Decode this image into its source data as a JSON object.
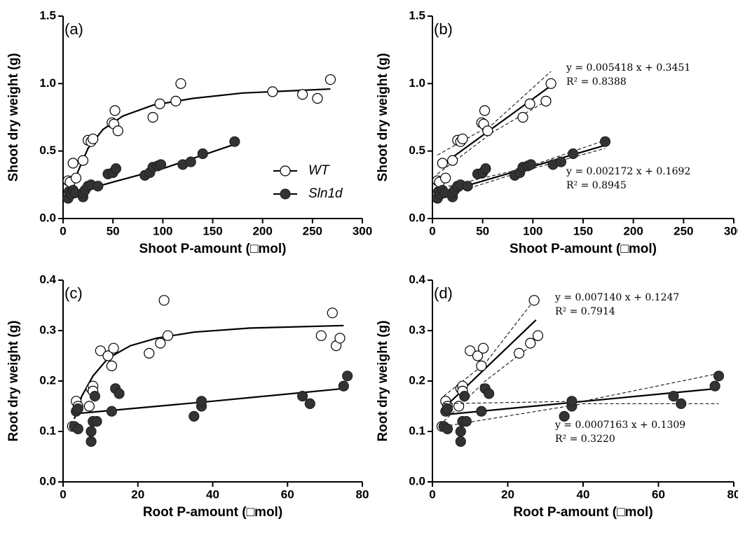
{
  "chart_data": [
    {
      "type": "scatter",
      "panel_label": "(a)",
      "xlabel": "Shoot P-amount (□mol)",
      "ylabel": "Shoot dry weight (g)",
      "xlim": [
        0,
        300
      ],
      "ylim": [
        0,
        1.5
      ],
      "xticks": [
        0,
        50,
        100,
        150,
        200,
        250,
        300
      ],
      "yticks": [
        {
          "value": 0,
          "label": "0.0"
        },
        0.5,
        {
          "value": 1,
          "label": "1.0"
        },
        1.5
      ],
      "legend": "center right",
      "series": [
        {
          "name": "WT",
          "marker": "open",
          "color": "#000000",
          "x": [
            5,
            7,
            10,
            13,
            20,
            25,
            28,
            30,
            49,
            51,
            52,
            55,
            90,
            97,
            113,
            118,
            210,
            240,
            255,
            268
          ],
          "values": [
            0.28,
            0.27,
            0.41,
            0.3,
            0.43,
            0.58,
            0.57,
            0.59,
            0.71,
            0.7,
            0.8,
            0.65,
            0.75,
            0.85,
            0.87,
            1.0,
            0.94,
            0.92,
            0.89,
            1.03
          ],
          "fit": {
            "x": [
              8,
              15,
              25,
              40,
              60,
              90,
              130,
              180,
              268
            ],
            "values": [
              0.18,
              0.35,
              0.52,
              0.66,
              0.76,
              0.84,
              0.89,
              0.93,
              0.96
            ]
          }
        },
        {
          "name": "Sln1d",
          "marker": "filled",
          "color": "#333333",
          "x": [
            5,
            6,
            8,
            10,
            12,
            20,
            20,
            22,
            25,
            28,
            35,
            45,
            50,
            53,
            82,
            87,
            90,
            95,
            98,
            120,
            128,
            140,
            172
          ],
          "values": [
            0.15,
            0.2,
            0.18,
            0.21,
            0.19,
            0.16,
            0.19,
            0.21,
            0.24,
            0.25,
            0.24,
            0.33,
            0.34,
            0.37,
            0.32,
            0.34,
            0.38,
            0.39,
            0.4,
            0.4,
            0.42,
            0.48,
            0.57
          ],
          "fit": {
            "x": [
              7,
              50,
              100,
              172
            ],
            "values": [
              0.18,
              0.27,
              0.37,
              0.55
            ]
          }
        }
      ]
    },
    {
      "type": "scatter",
      "panel_label": "(b)",
      "xlabel": "Shoot P-amount (□mol)",
      "ylabel": "Shoot dry weight (g)",
      "xlim": [
        0,
        300
      ],
      "ylim": [
        0,
        1.5
      ],
      "xticks": [
        0,
        50,
        100,
        150,
        200,
        250,
        300
      ],
      "yticks": [
        {
          "value": 0,
          "label": "0.0"
        },
        0.5,
        {
          "value": 1,
          "label": "1.0"
        },
        1.5
      ],
      "series": [
        {
          "marker": "open",
          "color": "#000000",
          "x": [
            5,
            7,
            10,
            13,
            20,
            25,
            28,
            30,
            49,
            51,
            52,
            55,
            90,
            97,
            113,
            118
          ],
          "values": [
            0.28,
            0.27,
            0.41,
            0.3,
            0.43,
            0.58,
            0.57,
            0.59,
            0.71,
            0.7,
            0.8,
            0.65,
            0.75,
            0.85,
            0.87,
            1.0
          ],
          "fit": {
            "x": [
              8,
              118
            ],
            "slope": 0.005418,
            "intercept": 0.3451
          },
          "ci_upper": {
            "x": [
              5,
              60,
              118
            ],
            "values": [
              0.47,
              0.7,
              1.09
            ]
          },
          "ci_lower": {
            "x": [
              5,
              60,
              118
            ],
            "values": [
              0.33,
              0.64,
              0.89
            ]
          },
          "equation": "y = 0.005418  x + 0.3451",
          "r2": "R² = 0.8388"
        },
        {
          "marker": "filled",
          "color": "#333333",
          "x": [
            5,
            6,
            8,
            10,
            12,
            20,
            20,
            22,
            25,
            28,
            35,
            45,
            50,
            53,
            82,
            87,
            90,
            95,
            98,
            120,
            128,
            140,
            172
          ],
          "values": [
            0.15,
            0.2,
            0.18,
            0.21,
            0.19,
            0.16,
            0.19,
            0.21,
            0.24,
            0.25,
            0.24,
            0.33,
            0.34,
            0.37,
            0.32,
            0.34,
            0.38,
            0.39,
            0.4,
            0.4,
            0.42,
            0.48,
            0.57
          ],
          "fit": {
            "x": [
              5,
              172
            ],
            "slope": 0.002172,
            "intercept": 0.1692
          },
          "ci_upper": {
            "x": [
              5,
              90,
              172
            ],
            "values": [
              0.22,
              0.37,
              0.58
            ]
          },
          "ci_lower": {
            "x": [
              5,
              90,
              172
            ],
            "values": [
              0.15,
              0.35,
              0.52
            ]
          },
          "equation": "y = 0.002172  x + 0.1692",
          "r2": "R² = 0.8945"
        }
      ]
    },
    {
      "type": "scatter",
      "panel_label": "(c)",
      "xlabel": "Root P-amount (□mol)",
      "ylabel": "Root dry weight (g)",
      "xlim": [
        0,
        80
      ],
      "ylim": [
        0,
        0.4
      ],
      "xticks": [
        0,
        20,
        40,
        60,
        80
      ],
      "yticks": [
        {
          "value": 0,
          "label": "0.0"
        },
        0.1,
        0.2,
        0.3,
        0.4
      ],
      "series": [
        {
          "marker": "open",
          "color": "#000000",
          "x": [
            2.5,
            3.5,
            4,
            7,
            7.5,
            8,
            8,
            10,
            12,
            13,
            13.5,
            23,
            26,
            27,
            28,
            69,
            72,
            73,
            74
          ],
          "values": [
            0.11,
            0.16,
            0.15,
            0.15,
            0.185,
            0.19,
            0.18,
            0.26,
            0.25,
            0.23,
            0.265,
            0.255,
            0.275,
            0.36,
            0.29,
            0.29,
            0.335,
            0.27,
            0.285
          ],
          "fit": {
            "x": [
              3,
              5,
              8,
              12,
              18,
              25,
              35,
              50,
              75
            ],
            "values": [
              0.125,
              0.17,
              0.21,
              0.245,
              0.27,
              0.285,
              0.297,
              0.305,
              0.31
            ]
          }
        },
        {
          "marker": "filled",
          "color": "#333333",
          "x": [
            3,
            3.5,
            4,
            4,
            7.5,
            7.5,
            8,
            8.5,
            9,
            13,
            14,
            15,
            35,
            37,
            37,
            64,
            66,
            75,
            76
          ],
          "values": [
            0.11,
            0.14,
            0.105,
            0.145,
            0.08,
            0.1,
            0.12,
            0.17,
            0.12,
            0.14,
            0.185,
            0.175,
            0.13,
            0.15,
            0.16,
            0.17,
            0.155,
            0.19,
            0.21
          ],
          "fit": {
            "x": [
              3,
              40,
              75
            ],
            "values": [
              0.135,
              0.16,
              0.185
            ]
          }
        }
      ]
    },
    {
      "type": "scatter",
      "panel_label": "(d)",
      "xlabel": "Root P-amount (□mol)",
      "ylabel": "Root dry weight (g)",
      "xlim": [
        0,
        80
      ],
      "ylim": [
        0,
        0.4
      ],
      "xticks": [
        0,
        20,
        40,
        60,
        80
      ],
      "yticks": [
        {
          "value": 0,
          "label": "0.0"
        },
        0.1,
        0.2,
        0.3,
        0.4
      ],
      "series": [
        {
          "marker": "open",
          "color": "#000000",
          "x": [
            2.5,
            3.5,
            4,
            7,
            7.5,
            8,
            8,
            10,
            12,
            13,
            13.5,
            23,
            26,
            27,
            28
          ],
          "values": [
            0.11,
            0.16,
            0.15,
            0.15,
            0.185,
            0.19,
            0.18,
            0.26,
            0.25,
            0.23,
            0.265,
            0.255,
            0.275,
            0.36,
            0.29
          ],
          "fit": {
            "x": [
              3,
              27.5
            ],
            "slope": 0.00714,
            "intercept": 0.1247
          },
          "ci_upper": {
            "x": [
              3,
              14,
              28
            ],
            "values": [
              0.17,
              0.235,
              0.37
            ]
          },
          "ci_lower": {
            "x": [
              3,
              14,
              28
            ],
            "values": [
              0.12,
              0.2,
              0.28
            ]
          },
          "equation": "y = 0.007140  x + 0.1247",
          "r2": "R² = 0.7914"
        },
        {
          "marker": "filled",
          "color": "#333333",
          "x": [
            3,
            3.5,
            4,
            4,
            7.5,
            7.5,
            8,
            8.5,
            9,
            13,
            14,
            15,
            35,
            37,
            37,
            64,
            66,
            75,
            76
          ],
          "values": [
            0.11,
            0.14,
            0.105,
            0.145,
            0.08,
            0.1,
            0.12,
            0.17,
            0.12,
            0.14,
            0.185,
            0.175,
            0.13,
            0.15,
            0.16,
            0.17,
            0.155,
            0.19,
            0.21
          ],
          "fit": {
            "x": [
              3,
              76
            ],
            "slope": 0.0007163,
            "intercept": 0.1309
          },
          "ci_upper": {
            "x": [
              3,
              40,
              76
            ],
            "values": [
              0.155,
              0.16,
              0.215
            ]
          },
          "ci_lower": {
            "x": [
              3,
              40,
              76
            ],
            "values": [
              0.11,
              0.155,
              0.155
            ]
          },
          "equation": "y = 0.0007163 x + 0.1309",
          "r2": "R² = 0.3220"
        }
      ]
    }
  ]
}
